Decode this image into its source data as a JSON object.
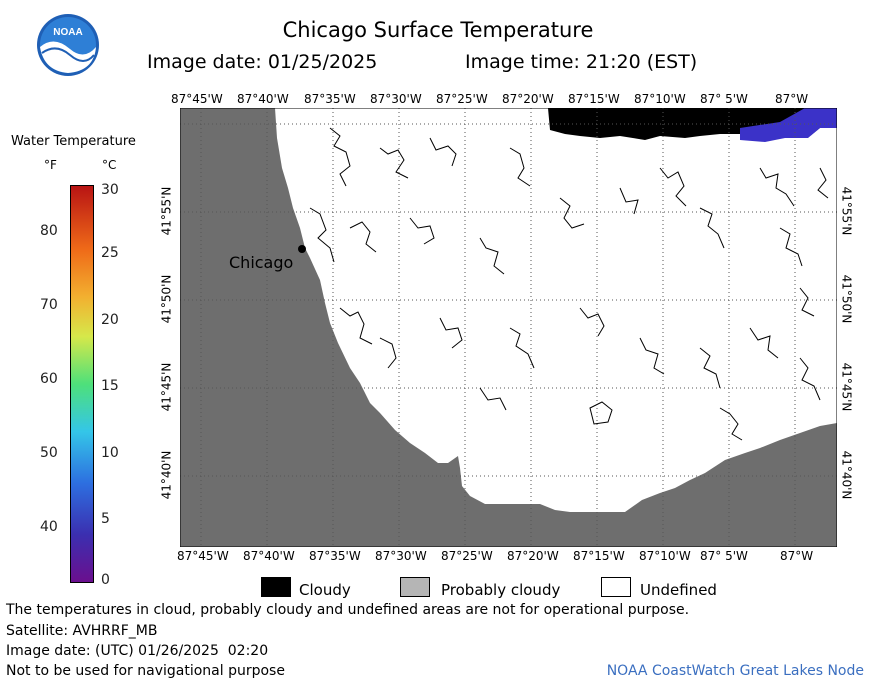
{
  "header": {
    "title": "Chicago Surface Temperature",
    "image_date": "Image date: 01/25/2025",
    "image_time": "Image time: 21:20 (EST)"
  },
  "colorbar": {
    "title": "Water Temperature",
    "unit_f": "°F",
    "unit_c": "°C",
    "f_ticks": [
      "40",
      "50",
      "60",
      "70",
      "80"
    ],
    "c_ticks": [
      "0",
      "5",
      "10",
      "15",
      "20",
      "25",
      "30"
    ]
  },
  "map": {
    "lon_labels": [
      "87°45'W",
      "87°40'W",
      "87°35'W",
      "87°30'W",
      "87°25'W",
      "87°20'W",
      "87°15'W",
      "87°10'W",
      "87° 5'W",
      "87°W"
    ],
    "lat_labels": [
      "41°55'N",
      "41°50'N",
      "41°45'N",
      "41°40'N"
    ],
    "city_label": "Chicago",
    "land_color": "#6e6e6e",
    "cloud_color": "#000000"
  },
  "legend": {
    "cloudy": "Cloudy",
    "probably_cloudy": "Probably cloudy",
    "undefined": "Undefined"
  },
  "footer": {
    "disclaimer": "The temperatures in cloud, probably cloudy and undefined areas are not for operational purpose.",
    "satellite": "Satellite: AVHRRF_MB",
    "utc_date": "Image date: (UTC) 01/26/2025  02:20",
    "nav_warning": "Not to be used for navigational purpose",
    "credit": "NOAA CoastWatch Great Lakes Node"
  }
}
